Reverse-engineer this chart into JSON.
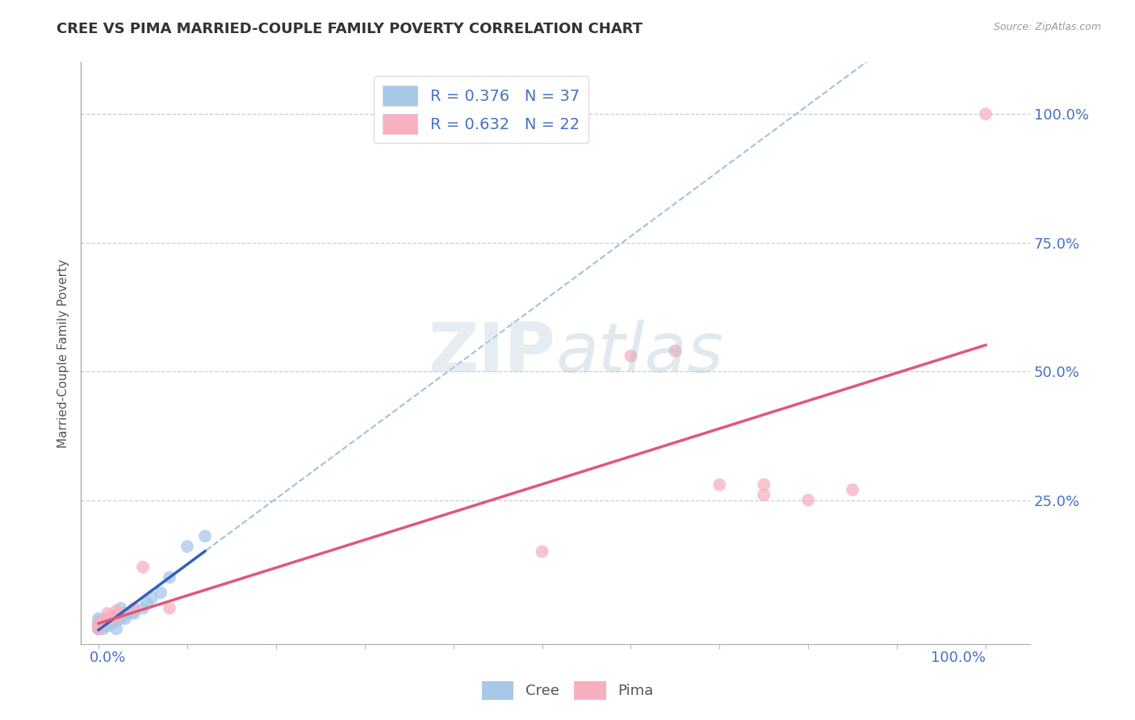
{
  "title": "CREE VS PIMA MARRIED-COUPLE FAMILY POVERTY CORRELATION CHART",
  "source": "Source: ZipAtlas.com",
  "ylabel": "Married-Couple Family Poverty",
  "cree_R": 0.376,
  "cree_N": 37,
  "pima_R": 0.632,
  "pima_N": 22,
  "cree_color": "#a8c8e8",
  "pima_color": "#f8b0c0",
  "cree_line_color": "#3060c0",
  "pima_line_color": "#e05878",
  "ref_line_color": "#90b8d8",
  "grid_color": "#c0d0e0",
  "title_color": "#333333",
  "source_color": "#999999",
  "axis_label_color": "#4472c4",
  "legend_R_color": "#4472c4",
  "background_color": "#ffffff",
  "cree_x": [
    0.0,
    0.0,
    0.0,
    0.0,
    0.0,
    0.0,
    0.0,
    0.0,
    0.0,
    0.005,
    0.005,
    0.005,
    0.01,
    0.01,
    0.01,
    0.01,
    0.012,
    0.015,
    0.015,
    0.018,
    0.02,
    0.02,
    0.02,
    0.025,
    0.025,
    0.03,
    0.03,
    0.035,
    0.04,
    0.04,
    0.05,
    0.055,
    0.06,
    0.07,
    0.08,
    0.1,
    0.12
  ],
  "cree_y": [
    0.0,
    0.0,
    0.0,
    0.005,
    0.005,
    0.01,
    0.01,
    0.015,
    0.02,
    0.0,
    0.005,
    0.015,
    0.005,
    0.01,
    0.015,
    0.02,
    0.02,
    0.01,
    0.025,
    0.02,
    0.0,
    0.015,
    0.025,
    0.02,
    0.04,
    0.02,
    0.03,
    0.03,
    0.03,
    0.035,
    0.04,
    0.05,
    0.06,
    0.07,
    0.1,
    0.16,
    0.18
  ],
  "pima_x": [
    0.0,
    0.0,
    0.0,
    0.005,
    0.01,
    0.01,
    0.015,
    0.02,
    0.02,
    0.025,
    0.04,
    0.05,
    0.08,
    0.5,
    0.6,
    0.65,
    0.7,
    0.75,
    0.75,
    0.8,
    0.85,
    1.0
  ],
  "pima_y": [
    0.0,
    0.005,
    0.01,
    0.015,
    0.02,
    0.03,
    0.02,
    0.025,
    0.035,
    0.03,
    0.04,
    0.12,
    0.04,
    0.15,
    0.53,
    0.54,
    0.28,
    0.26,
    0.28,
    0.25,
    0.27,
    1.0
  ],
  "xlim": [
    -0.02,
    1.05
  ],
  "ylim": [
    -0.03,
    1.1
  ],
  "ytick_vals": [
    0.25,
    0.5,
    0.75,
    1.0
  ],
  "ytick_labels": [
    "25.0%",
    "50.0%",
    "75.0%",
    "100.0%"
  ],
  "xtick_left_label": "0.0%",
  "xtick_right_label": "100.0%",
  "watermark_zip": "ZIP",
  "watermark_atlas": "atlas"
}
